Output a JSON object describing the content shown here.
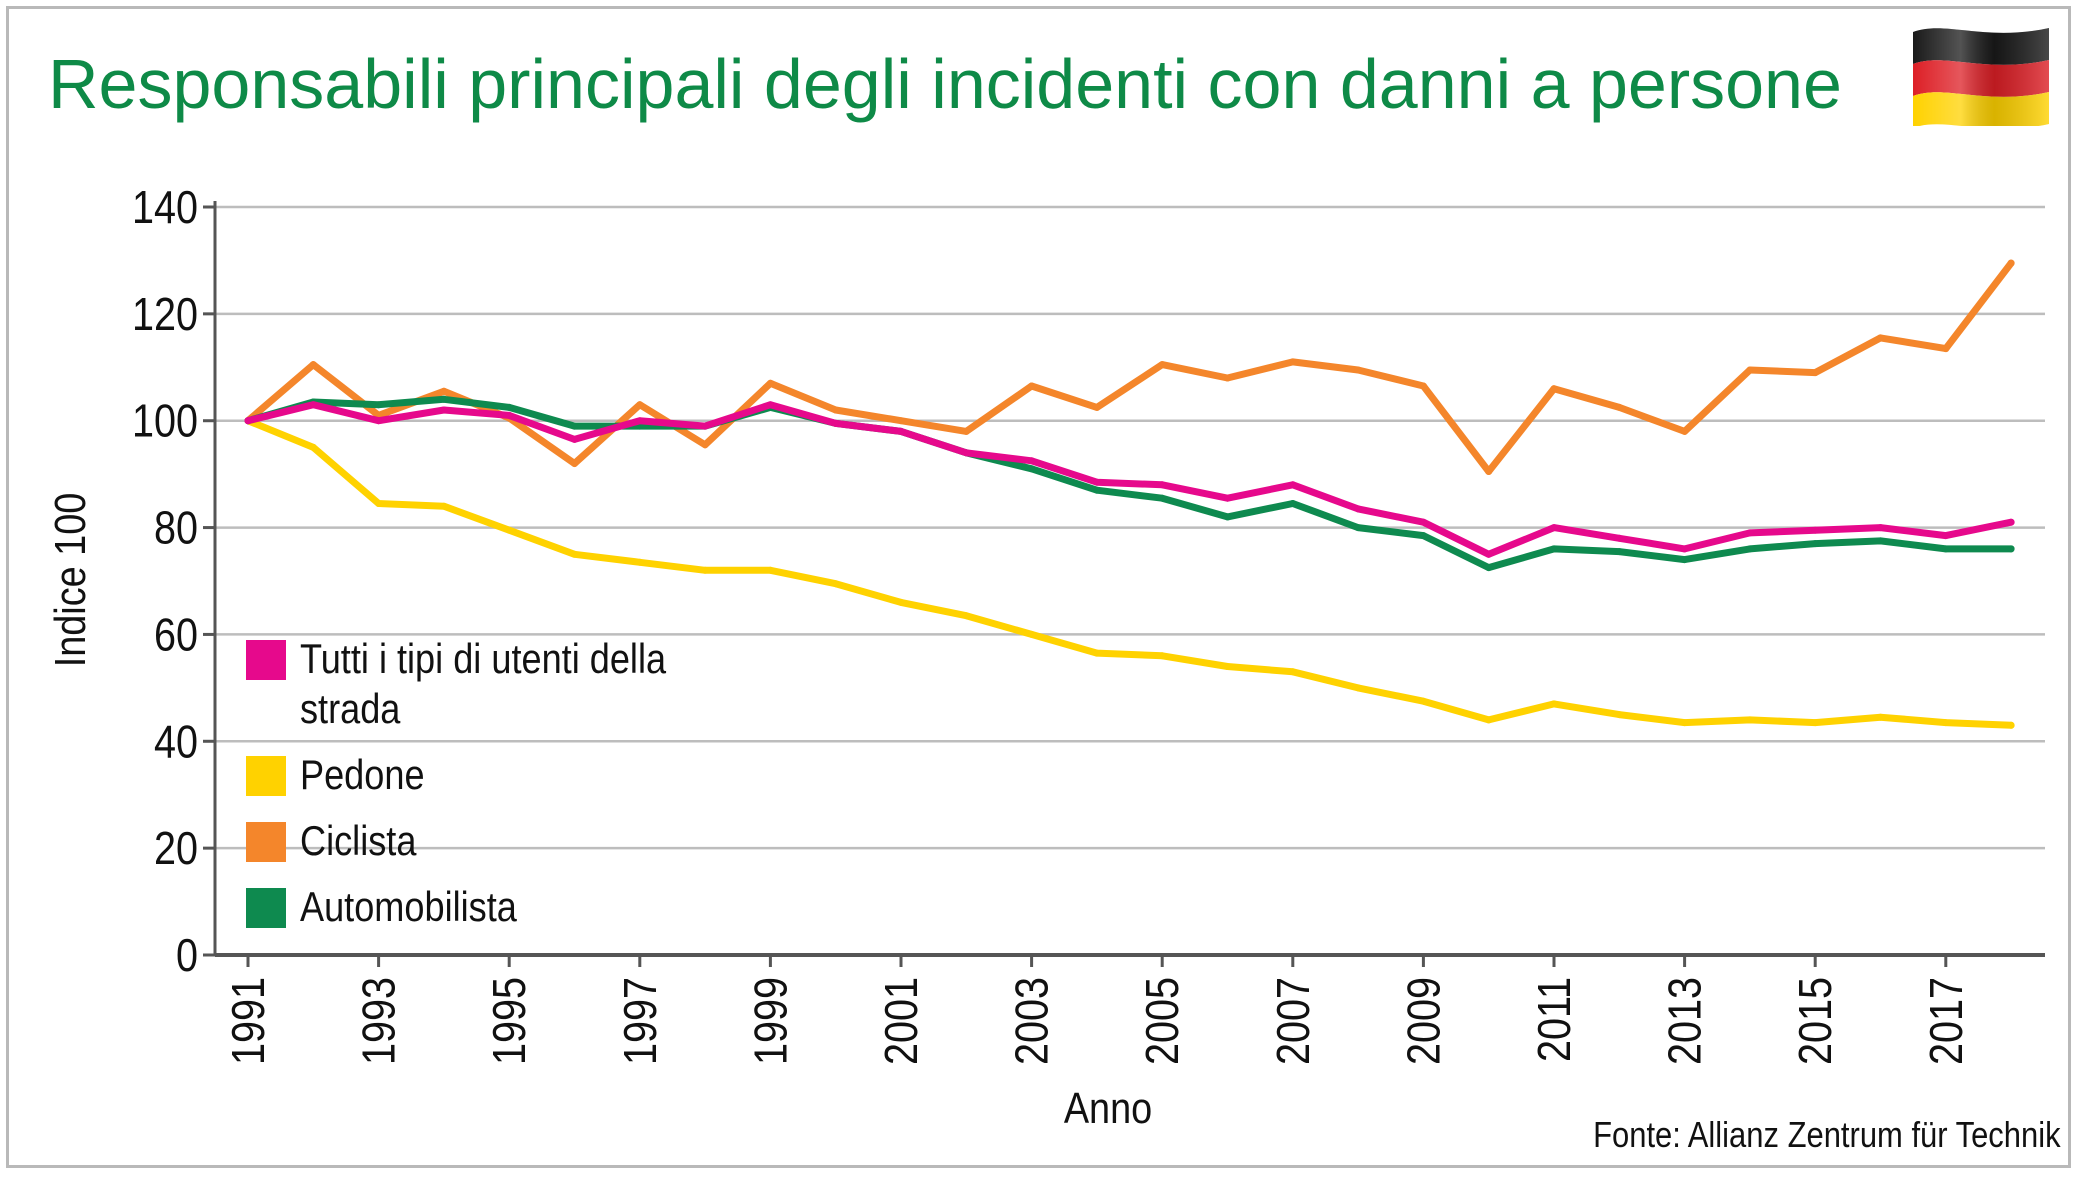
{
  "title": "Responsabili principali degli incidenti con danni a persone",
  "source": "Fonte: Allianz Zentrum für Technik",
  "colors": {
    "title": "#0e8a47",
    "grid": "#bdbdbd",
    "axis": "#555555"
  },
  "icons": {
    "flag": "germany-flag-icon"
  },
  "chart_data": {
    "type": "line",
    "title": "Responsabili principali degli incidenti con danni a persone",
    "xlabel": "Anno",
    "ylabel": "Indice 100",
    "ylim": [
      0,
      140
    ],
    "yticks": [
      0,
      20,
      40,
      60,
      80,
      100,
      120,
      140
    ],
    "xlim": [
      1991,
      2018
    ],
    "xticks": [
      "1991",
      "1993",
      "1995",
      "1997",
      "1999",
      "2001",
      "2003",
      "2005",
      "2007",
      "2009",
      "2011",
      "2013",
      "2015",
      "2017"
    ],
    "grid": true,
    "legend_position": "left",
    "x": [
      1991,
      1992,
      1993,
      1994,
      1995,
      1996,
      1997,
      1998,
      1999,
      2000,
      2001,
      2002,
      2003,
      2004,
      2005,
      2006,
      2007,
      2008,
      2009,
      2010,
      2011,
      2012,
      2013,
      2014,
      2015,
      2016,
      2017,
      2018
    ],
    "series": [
      {
        "name": "Tutti i tipi di utenti della strada",
        "color": "#e6098c",
        "values": [
          100,
          103,
          100,
          102,
          101,
          96.5,
          100,
          99,
          103,
          99.5,
          98,
          94,
          92.5,
          88.5,
          88,
          85.5,
          88,
          83.5,
          81,
          75,
          80,
          78,
          76,
          79,
          79.5,
          80,
          78.5,
          81
        ]
      },
      {
        "name": "Pedone",
        "color": "#ffd200",
        "values": [
          100,
          95,
          84.5,
          84,
          79.5,
          75,
          73.5,
          72,
          72,
          69.5,
          66,
          63.5,
          60,
          56.5,
          56,
          54,
          53,
          50,
          47.5,
          44,
          47,
          45,
          43.5,
          44,
          43.5,
          44.5,
          43.5,
          43
        ]
      },
      {
        "name": "Ciclista",
        "color": "#f4862b",
        "values": [
          100,
          110.5,
          101,
          105.5,
          100.5,
          92,
          103,
          95.5,
          107,
          102,
          100,
          98,
          106.5,
          102.5,
          110.5,
          108,
          111,
          109.5,
          106.5,
          90.5,
          106,
          102.5,
          98,
          109.5,
          109,
          115.5,
          113.5,
          129.5
        ]
      },
      {
        "name": "Automobilista",
        "color": "#0e8a4f",
        "values": [
          100,
          103.5,
          103,
          104,
          102.5,
          99,
          99,
          99,
          102.5,
          99.5,
          98,
          94,
          91,
          87,
          85.5,
          82,
          84.5,
          80,
          78.5,
          72.5,
          76,
          75.5,
          74,
          76,
          77,
          77.5,
          76,
          76
        ]
      }
    ]
  }
}
